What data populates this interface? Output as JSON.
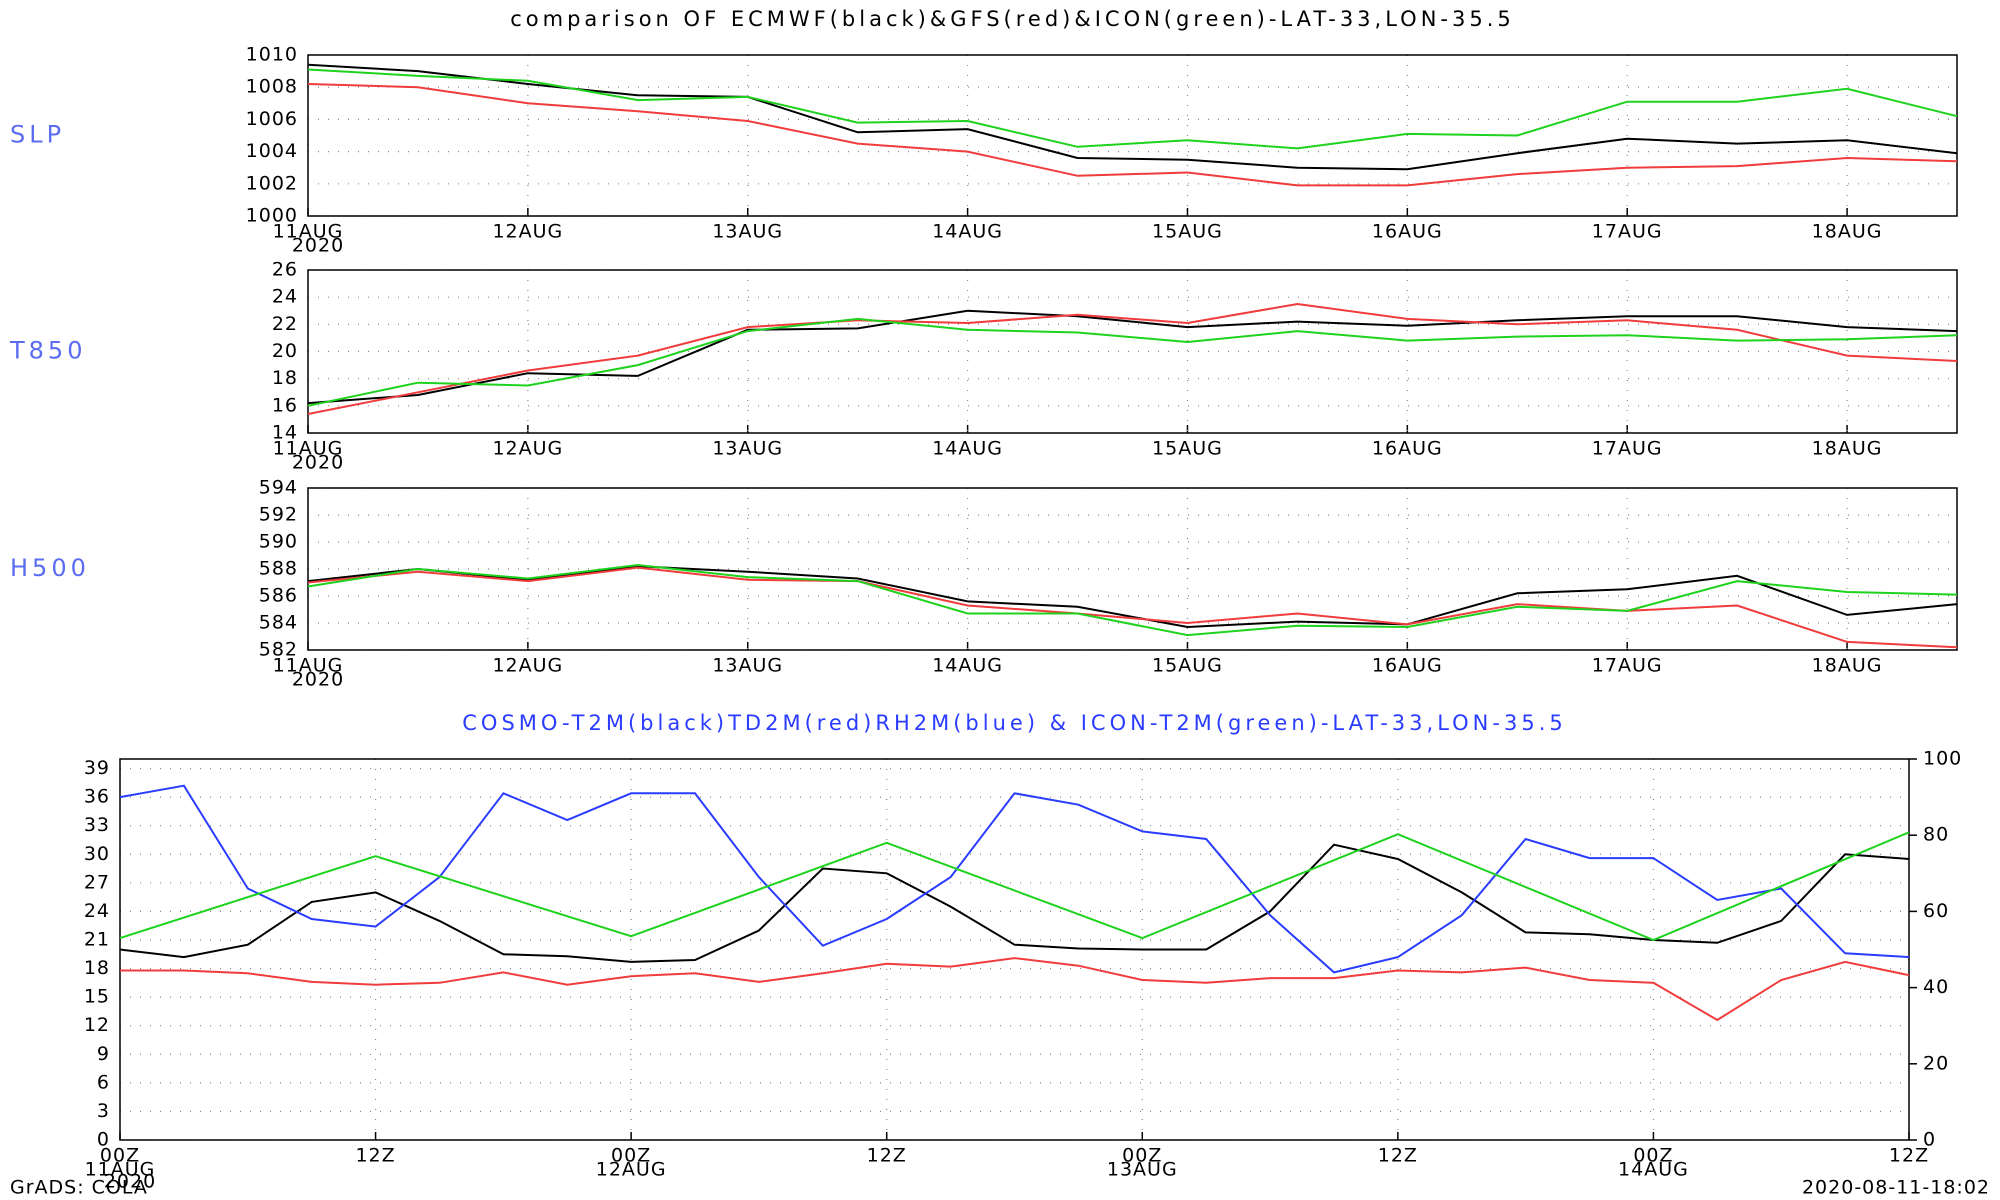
{
  "chart_data": [
    {
      "type": "line",
      "title": "comparison OF ECMWF(black)&GFS(red)&ICON(green)-LAT-33,LON-35.5",
      "ylabel": "SLP",
      "x": [
        0,
        12,
        24,
        36,
        48,
        60,
        72,
        84,
        96,
        108,
        120,
        132,
        144,
        156,
        168,
        180
      ],
      "xlim": [
        0,
        180
      ],
      "xticks": [
        {
          "value": 0,
          "label": "11AUG"
        },
        {
          "value": 24,
          "label": "12AUG"
        },
        {
          "value": 48,
          "label": "13AUG"
        },
        {
          "value": 72,
          "label": "14AUG"
        },
        {
          "value": 96,
          "label": "15AUG"
        },
        {
          "value": 120,
          "label": "16AUG"
        },
        {
          "value": 144,
          "label": "17AUG"
        },
        {
          "value": 168,
          "label": "18AUG"
        }
      ],
      "year_label": "2020",
      "ylim": [
        1000,
        1010
      ],
      "yticks": [
        1000,
        1002,
        1004,
        1006,
        1008,
        1010
      ],
      "grid": true,
      "series": [
        {
          "name": "ECMWF",
          "color": "#000000",
          "values": [
            1009.4,
            1009.0,
            1008.2,
            1007.5,
            1007.4,
            1005.2,
            1005.4,
            1003.6,
            1003.5,
            1003.0,
            1002.9,
            1003.9,
            1004.8,
            1004.5,
            1004.7,
            1003.9
          ]
        },
        {
          "name": "GFS",
          "color": "#f03c3c",
          "values": [
            1008.2,
            1008.0,
            1007.0,
            1006.5,
            1005.9,
            1004.5,
            1004.0,
            1002.5,
            1002.7,
            1001.9,
            1001.9,
            1002.6,
            1003.0,
            1003.1,
            1003.6,
            1003.4
          ]
        },
        {
          "name": "ICON",
          "color": "#1ed21e",
          "values": [
            1009.1,
            1008.7,
            1008.4,
            1007.2,
            1007.4,
            1005.8,
            1005.9,
            1004.3,
            1004.7,
            1004.2,
            1005.1,
            1005.0,
            1007.1,
            1007.1,
            1007.9,
            1006.2
          ]
        }
      ]
    },
    {
      "type": "line",
      "ylabel": "T850",
      "x": [
        0,
        12,
        24,
        36,
        48,
        60,
        72,
        84,
        96,
        108,
        120,
        132,
        144,
        156,
        168,
        180
      ],
      "xlim": [
        0,
        180
      ],
      "xticks": [
        {
          "value": 0,
          "label": "11AUG"
        },
        {
          "value": 24,
          "label": "12AUG"
        },
        {
          "value": 48,
          "label": "13AUG"
        },
        {
          "value": 72,
          "label": "14AUG"
        },
        {
          "value": 96,
          "label": "15AUG"
        },
        {
          "value": 120,
          "label": "16AUG"
        },
        {
          "value": 144,
          "label": "17AUG"
        },
        {
          "value": 168,
          "label": "18AUG"
        }
      ],
      "year_label": "2020",
      "ylim": [
        14,
        26
      ],
      "yticks": [
        14,
        16,
        18,
        20,
        22,
        24,
        26
      ],
      "grid": true,
      "series": [
        {
          "name": "ECMWF",
          "color": "#000000",
          "values": [
            16.2,
            16.8,
            18.4,
            18.2,
            21.6,
            21.7,
            23.0,
            22.6,
            21.8,
            22.2,
            21.9,
            22.3,
            22.6,
            22.6,
            21.8,
            21.5
          ]
        },
        {
          "name": "GFS",
          "color": "#f03c3c",
          "values": [
            15.4,
            17.0,
            18.6,
            19.7,
            21.8,
            22.3,
            22.1,
            22.7,
            22.1,
            23.5,
            22.4,
            22.0,
            22.3,
            21.6,
            19.7,
            19.3
          ]
        },
        {
          "name": "ICON",
          "color": "#1ed21e",
          "values": [
            16.0,
            17.7,
            17.5,
            19.0,
            21.5,
            22.4,
            21.6,
            21.4,
            20.7,
            21.5,
            20.8,
            21.1,
            21.2,
            20.8,
            20.9,
            21.2
          ]
        }
      ]
    },
    {
      "type": "line",
      "ylabel": "H500",
      "x": [
        0,
        12,
        24,
        36,
        48,
        60,
        72,
        84,
        96,
        108,
        120,
        132,
        144,
        156,
        168,
        180
      ],
      "xlim": [
        0,
        180
      ],
      "xticks": [
        {
          "value": 0,
          "label": "11AUG"
        },
        {
          "value": 24,
          "label": "12AUG"
        },
        {
          "value": 48,
          "label": "13AUG"
        },
        {
          "value": 72,
          "label": "14AUG"
        },
        {
          "value": 96,
          "label": "15AUG"
        },
        {
          "value": 120,
          "label": "16AUG"
        },
        {
          "value": 144,
          "label": "17AUG"
        },
        {
          "value": 168,
          "label": "18AUG"
        }
      ],
      "year_label": "2020",
      "ylim": [
        582,
        594
      ],
      "yticks": [
        582,
        584,
        586,
        588,
        590,
        592,
        594
      ],
      "grid": true,
      "series": [
        {
          "name": "ECMWF",
          "color": "#000000",
          "values": [
            587.1,
            588.0,
            587.2,
            588.2,
            587.8,
            587.3,
            585.6,
            585.2,
            583.7,
            584.1,
            583.9,
            586.2,
            586.5,
            587.5,
            584.6,
            585.4
          ]
        },
        {
          "name": "GFS",
          "color": "#f03c3c",
          "values": [
            587.0,
            587.8,
            587.1,
            588.1,
            587.2,
            587.1,
            585.3,
            584.7,
            584.0,
            584.7,
            583.9,
            585.4,
            584.9,
            585.3,
            582.6,
            582.2
          ]
        },
        {
          "name": "ICON",
          "color": "#1ed21e",
          "values": [
            586.7,
            588.0,
            587.3,
            588.3,
            587.4,
            587.1,
            584.7,
            584.7,
            583.1,
            583.8,
            583.7,
            585.2,
            584.9,
            587.1,
            586.3,
            586.1
          ]
        }
      ]
    },
    {
      "type": "line",
      "title": "COSMO-T2M(black)TD2M(red)RH2M(blue) & ICON-T2M(green)-LAT-33,LON-35.5",
      "xlim": [
        0,
        84
      ],
      "xticks": [
        {
          "value": 0,
          "label": "00Z"
        },
        {
          "value": 12,
          "label": "12Z"
        },
        {
          "value": 24,
          "label": "00Z"
        },
        {
          "value": 36,
          "label": "12Z"
        },
        {
          "value": 48,
          "label": "00Z"
        },
        {
          "value": 60,
          "label": "12Z"
        },
        {
          "value": 72,
          "label": "00Z"
        },
        {
          "value": 84,
          "label": "12Z"
        }
      ],
      "date_labels": [
        {
          "value": 0,
          "label": "11AUG"
        },
        {
          "value": 24,
          "label": "12AUG"
        },
        {
          "value": 48,
          "label": "13AUG"
        },
        {
          "value": 72,
          "label": "14AUG"
        }
      ],
      "year_label": "2020",
      "ylim": [
        0,
        40
      ],
      "yticks": [
        0,
        3,
        6,
        9,
        12,
        15,
        18,
        21,
        24,
        27,
        30,
        33,
        36,
        39
      ],
      "y2lim": [
        0,
        100
      ],
      "y2ticks": [
        0,
        20,
        40,
        60,
        80,
        100
      ],
      "grid": true,
      "series": [
        {
          "name": "T2M",
          "color": "#000000",
          "x": [
            0,
            3,
            6,
            9,
            12,
            15,
            18,
            21,
            24,
            27,
            30,
            33,
            36,
            39,
            42,
            45,
            48,
            51,
            54,
            57,
            60,
            63,
            66,
            69,
            72,
            75,
            78,
            81,
            84
          ],
          "values": [
            20,
            19.2,
            20.5,
            25,
            26,
            23,
            19.5,
            19.3,
            18.7,
            18.9,
            22,
            28.5,
            28,
            24.5,
            20.5,
            20.1,
            20,
            20,
            24,
            31,
            29.5,
            26,
            21.8,
            21.6,
            21,
            20.7,
            23,
            30,
            29.5
          ]
        },
        {
          "name": "TD2M",
          "color": "#f03c3c",
          "x": [
            0,
            3,
            6,
            9,
            12,
            15,
            18,
            21,
            24,
            27,
            30,
            33,
            36,
            39,
            42,
            45,
            48,
            51,
            54,
            57,
            60,
            63,
            66,
            69,
            72,
            75,
            78,
            81,
            84
          ],
          "values": [
            17.8,
            17.8,
            17.5,
            16.6,
            16.3,
            16.5,
            17.6,
            16.3,
            17.2,
            17.5,
            16.6,
            17.5,
            18.5,
            18.2,
            19.1,
            18.3,
            16.8,
            16.5,
            17.0,
            17.0,
            17.8,
            17.6,
            18.1,
            16.8,
            16.5,
            12.6,
            16.8,
            18.7,
            17.3
          ]
        },
        {
          "name": "RH2M",
          "color": "#2a3cff",
          "axis": "y2",
          "x": [
            0,
            3,
            6,
            9,
            12,
            15,
            18,
            21,
            24,
            27,
            30,
            33,
            36,
            39,
            42,
            45,
            48,
            51,
            54,
            57,
            60,
            63,
            66,
            69,
            72,
            75,
            78,
            81,
            84
          ],
          "values": [
            90,
            93,
            66,
            58,
            56,
            69,
            91,
            84,
            91,
            91,
            69,
            51,
            58,
            69,
            91,
            88,
            81,
            79,
            59,
            44,
            48,
            59,
            79,
            74,
            74,
            63,
            66,
            49,
            48
          ]
        },
        {
          "name": "ICON-T2M",
          "color": "#1ed21e",
          "x": [
            0,
            12,
            24,
            36,
            48,
            60,
            72,
            84
          ],
          "values": [
            21.2,
            29.8,
            21.4,
            31.2,
            21.2,
            32.1,
            21.0,
            32.3
          ]
        }
      ]
    }
  ],
  "footer": {
    "left": "GrADS: COLA",
    "right": "2020-08-11-18:02"
  }
}
